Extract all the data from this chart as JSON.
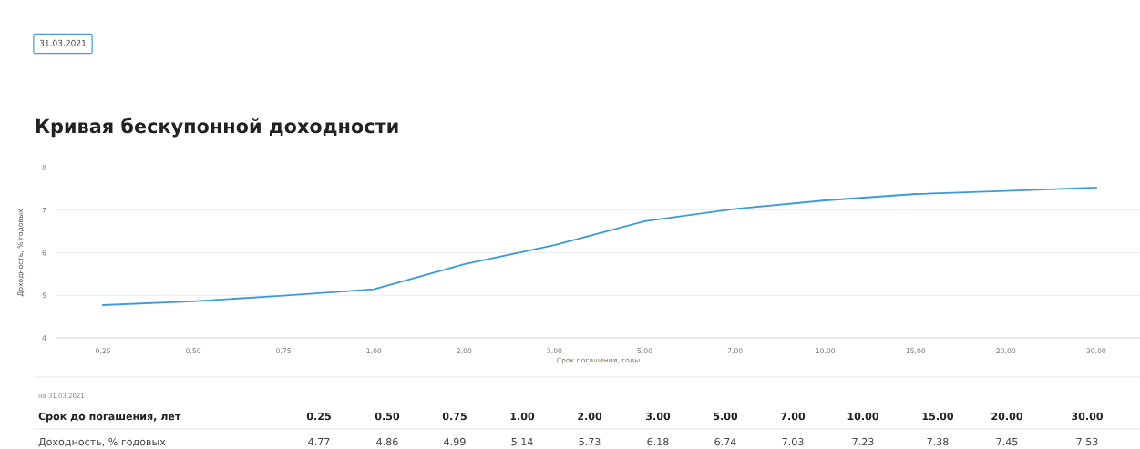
{
  "chart_data": {
    "type": "line",
    "title": "Кривая бескупонной доходности",
    "xlabel": "Срок погашения, годы",
    "ylabel": "Доходность, % годовых",
    "categories": [
      "0,25",
      "0,50",
      "0,75",
      "1,00",
      "2,00",
      "3,00",
      "5,00",
      "7,00",
      "10,00",
      "15,00",
      "20,00",
      "30,00"
    ],
    "series": [
      {
        "color": "#3b9ad9",
        "values": [
          4.77,
          4.86,
          4.99,
          5.14,
          5.73,
          6.18,
          6.74,
          7.03,
          7.23,
          7.38,
          7.45,
          7.53
        ]
      }
    ],
    "ylim": [
      4,
      8
    ],
    "yticks": [
      4,
      5,
      6,
      7,
      8
    ],
    "grid": "y",
    "marker": "none",
    "line_style": "solid",
    "legend": false,
    "annotations": [
      "31.03.2021",
      "на 31.03.2021",
      "Срок до погашения, лет",
      "Доходность, % годовых",
      "0.25",
      "0.50",
      "0.75",
      "1.00",
      "2.00",
      "3.00",
      "5.00",
      "7.00",
      "10.00",
      "15.00",
      "20.00",
      "30.00",
      "4.77",
      "4.86",
      "4.99",
      "5.14",
      "5.73",
      "6.18",
      "6.74",
      "7.03",
      "7.23",
      "7.38",
      "7.45",
      "7.53"
    ]
  }
}
